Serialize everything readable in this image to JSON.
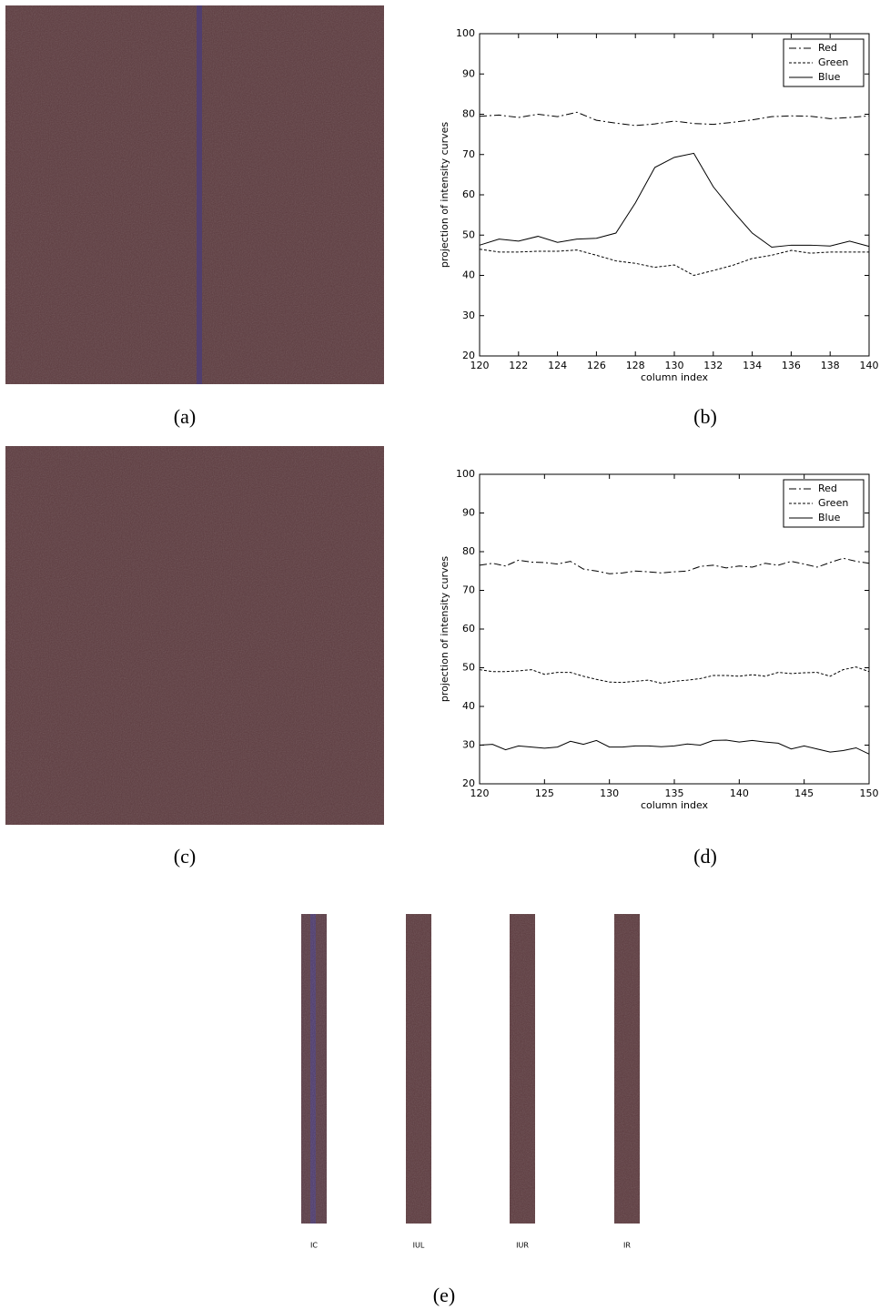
{
  "chart_data": [
    {
      "type": "line",
      "x_label": "column index",
      "y_label": "projection of intensity curves",
      "x": [
        120,
        121,
        122,
        123,
        124,
        125,
        126,
        127,
        128,
        129,
        130,
        131,
        132,
        133,
        134,
        135,
        136,
        137,
        138,
        139,
        140
      ],
      "xlim": [
        120,
        140
      ],
      "ylim": [
        20,
        100
      ],
      "xticks": [
        120,
        122,
        124,
        126,
        128,
        130,
        132,
        134,
        136,
        138,
        140
      ],
      "yticks": [
        20,
        30,
        40,
        50,
        60,
        70,
        80,
        90,
        100
      ],
      "legend": "upper right",
      "series": [
        {
          "name": "Red",
          "color": "#000000",
          "dash": "dashdot",
          "values": [
            79.5,
            79.8,
            79.2,
            80,
            79.4,
            80.5,
            78.5,
            77.8,
            77.2,
            77.6,
            78.3,
            77.7,
            77.5,
            78,
            78.6,
            79.4,
            79.6,
            79.5,
            78.9,
            79.2,
            79.6
          ]
        },
        {
          "name": "Green",
          "color": "#000000",
          "dash": "dotted",
          "values": [
            46.5,
            45.8,
            45.8,
            46,
            46,
            46.3,
            45,
            43.6,
            43,
            42,
            42.6,
            40,
            41.2,
            42.5,
            44.2,
            45,
            46.2,
            45.5,
            45.8,
            45.8,
            45.8
          ]
        },
        {
          "name": "Blue",
          "color": "#000000",
          "dash": "solid",
          "values": [
            47.5,
            49,
            48.5,
            49.7,
            48.2,
            49,
            49.2,
            50.5,
            58,
            66.8,
            69.3,
            70.3,
            62,
            56,
            50.5,
            47,
            47.5,
            47.5,
            47.3,
            48.5,
            47.2
          ]
        }
      ]
    },
    {
      "type": "line",
      "x_label": "column index",
      "y_label": "projection of intensity curves",
      "x": [
        120,
        121,
        122,
        123,
        124,
        125,
        126,
        127,
        128,
        129,
        130,
        131,
        132,
        133,
        134,
        135,
        136,
        137,
        138,
        139,
        140,
        141,
        142,
        143,
        144,
        145,
        146,
        147,
        148,
        149,
        150
      ],
      "xlim": [
        120,
        150
      ],
      "ylim": [
        20,
        100
      ],
      "xticks": [
        120,
        125,
        130,
        135,
        140,
        145,
        150
      ],
      "yticks": [
        20,
        30,
        40,
        50,
        60,
        70,
        80,
        90,
        100
      ],
      "legend": "upper right",
      "series": [
        {
          "name": "Red",
          "color": "#000000",
          "dash": "dashdot",
          "values": [
            76.5,
            77,
            76.3,
            77.8,
            77.3,
            77.2,
            76.8,
            77.5,
            75.5,
            75,
            74.3,
            74.5,
            75,
            74.8,
            74.5,
            74.8,
            75,
            76.2,
            76.5,
            75.8,
            76.3,
            76,
            77,
            76.5,
            77.5,
            76.8,
            76,
            77.2,
            78.3,
            77.5,
            77
          ]
        },
        {
          "name": "Green",
          "color": "#000000",
          "dash": "dotted",
          "values": [
            49.5,
            49,
            49,
            49.2,
            49.5,
            48.3,
            48.8,
            48.8,
            47.8,
            47,
            46.3,
            46.2,
            46.5,
            46.8,
            46,
            46.5,
            46.8,
            47.2,
            48,
            48,
            47.8,
            48.2,
            47.8,
            48.8,
            48.5,
            48.7,
            48.8,
            47.8,
            49.5,
            50.2,
            49
          ]
        },
        {
          "name": "Blue",
          "color": "#000000",
          "dash": "solid",
          "values": [
            30,
            30.2,
            28.8,
            29.8,
            29.5,
            29.2,
            29.5,
            31,
            30.2,
            31.2,
            29.5,
            29.5,
            29.8,
            29.8,
            29.6,
            29.8,
            30.3,
            30,
            31.2,
            31.3,
            30.8,
            31.2,
            30.8,
            30.5,
            29,
            29.8,
            29,
            28.2,
            28.6,
            29.3,
            27.7
          ]
        }
      ]
    }
  ],
  "figure": {
    "panel_labels": [
      "(a)",
      "(b)",
      "(c)",
      "(d)",
      "(e)"
    ],
    "strip_labels": [
      "IC",
      "IUL",
      "IUR",
      "IR"
    ]
  }
}
